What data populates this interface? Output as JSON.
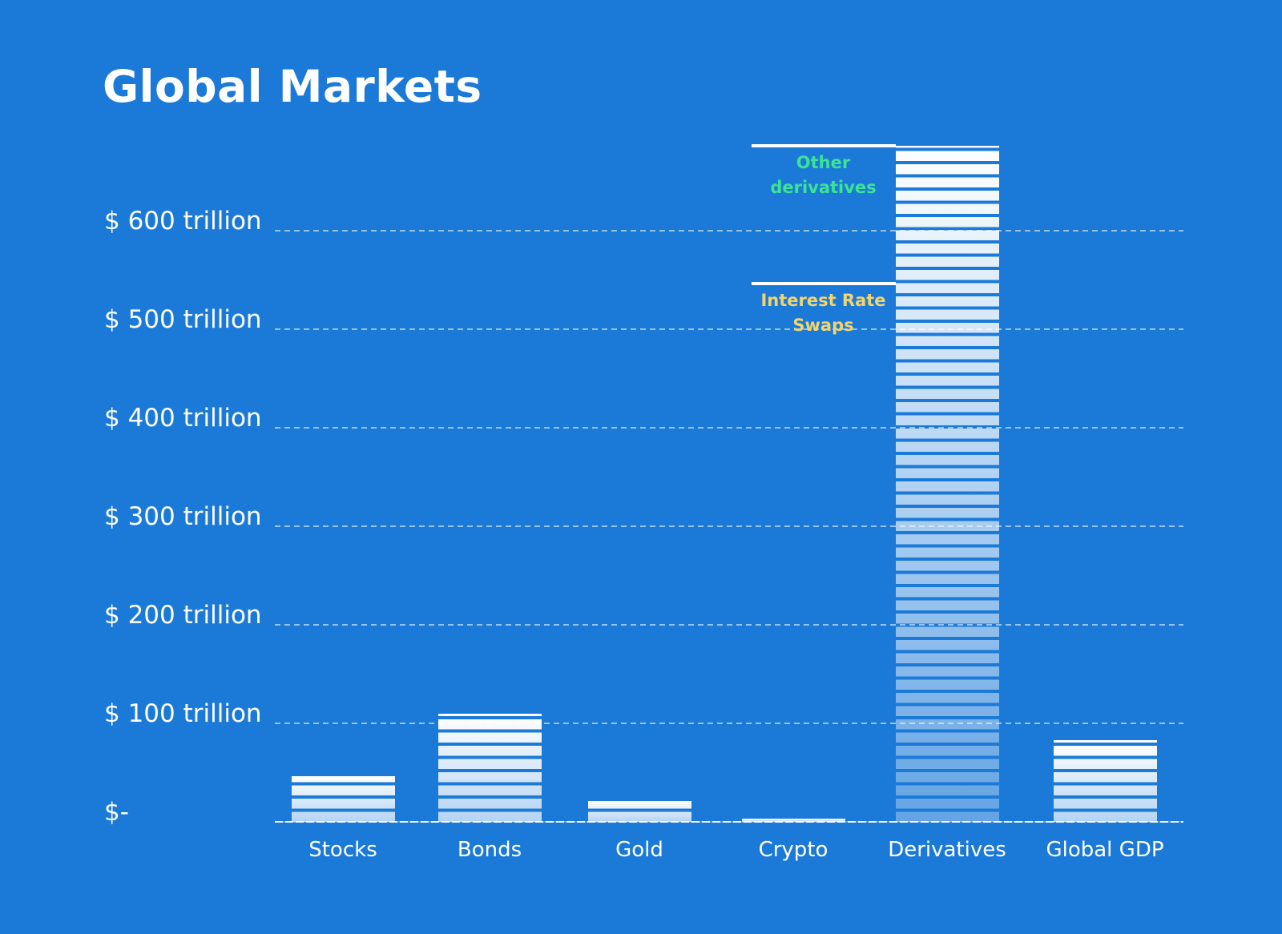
{
  "page": {
    "title": "Global Markets"
  },
  "colors": {
    "background": "#1b7ad8",
    "bar_fill_top": "#ffffff",
    "text": "#ffffff",
    "gridline": "#ffffff",
    "annotation_other_derivatives": "#3ce394",
    "annotation_interest_rate_swaps": "#f2d46e"
  },
  "chart_data": {
    "type": "bar",
    "title": "Global Markets",
    "unit": "USD trillions",
    "categories": [
      "Stocks",
      "Bonds",
      "Gold",
      "Crypto",
      "Derivatives",
      "Global GDP"
    ],
    "values": [
      46,
      110,
      21,
      2,
      686,
      83
    ],
    "xlabel": "",
    "ylabel": "",
    "ylim": [
      0,
      700
    ],
    "grid": "horizontal-dashed",
    "legend": "none",
    "bar_style": "horizontal-striped, white fading to translucent toward bottom",
    "y_ticks": [
      {
        "value": 0,
        "label": "$-"
      },
      {
        "value": 100,
        "label": "$ 100 trillion"
      },
      {
        "value": 200,
        "label": "$ 200 trillion"
      },
      {
        "value": 300,
        "label": "$ 300 trillion"
      },
      {
        "value": 400,
        "label": "$ 400 trillion"
      },
      {
        "value": 500,
        "label": "$ 500 trillion"
      },
      {
        "value": 600,
        "label": "$ 600 trillion"
      }
    ],
    "annotations": [
      {
        "label": "Other derivatives",
        "label_lines": [
          "Other derivatives"
        ],
        "value": 686,
        "color": "#3ce394",
        "target": "Derivatives"
      },
      {
        "label": "Interest Rate Swaps",
        "label_lines": [
          "Interest Rate",
          "Swaps"
        ],
        "value": 546,
        "color": "#f2d46e",
        "target": "Derivatives"
      }
    ]
  }
}
